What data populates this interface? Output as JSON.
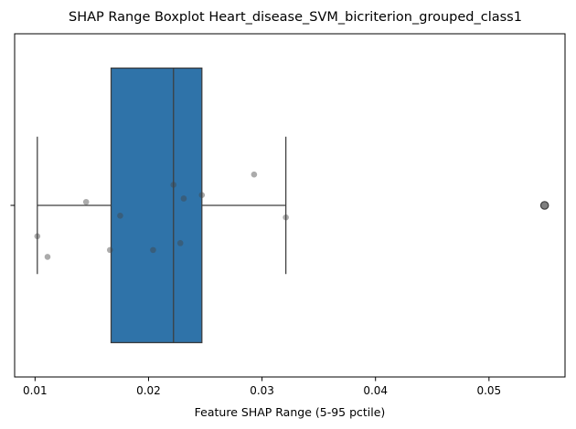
{
  "chart_data": {
    "type": "boxplot",
    "title": "SHAP Range Boxplot Heart_disease_SVM_bicriterion_grouped_class1",
    "xlabel": "Feature SHAP Range (5-95 pctile)",
    "ylabel": "",
    "xlim": [
      0.0082,
      0.0567
    ],
    "x_ticks": [
      {
        "value": 0.01,
        "label": "0.01"
      },
      {
        "value": 0.02,
        "label": "0.02"
      },
      {
        "value": 0.03,
        "label": "0.03"
      },
      {
        "value": 0.04,
        "label": "0.04"
      },
      {
        "value": 0.05,
        "label": "0.05"
      }
    ],
    "y_tick_label": "",
    "box": {
      "whisker_low": 0.0102,
      "q1": 0.0167,
      "median": 0.0222,
      "q3": 0.0247,
      "whisker_high": 0.0321,
      "outliers": [
        0.0549
      ]
    },
    "points": [
      {
        "x": 0.0102,
        "y": 0.09
      },
      {
        "x": 0.0111,
        "y": 0.15
      },
      {
        "x": 0.0145,
        "y": -0.01
      },
      {
        "x": 0.0166,
        "y": 0.13
      },
      {
        "x": 0.0175,
        "y": 0.03
      },
      {
        "x": 0.0204,
        "y": 0.13
      },
      {
        "x": 0.0222,
        "y": -0.06
      },
      {
        "x": 0.0228,
        "y": 0.11
      },
      {
        "x": 0.0231,
        "y": -0.02
      },
      {
        "x": 0.0247,
        "y": -0.03
      },
      {
        "x": 0.0293,
        "y": -0.09
      },
      {
        "x": 0.0321,
        "y": 0.035
      }
    ],
    "colors": {
      "box_fill": "#2f73a9",
      "line": "#3d3d3d",
      "point": "#444444",
      "outlier_fill": "#7f7f7f"
    }
  }
}
